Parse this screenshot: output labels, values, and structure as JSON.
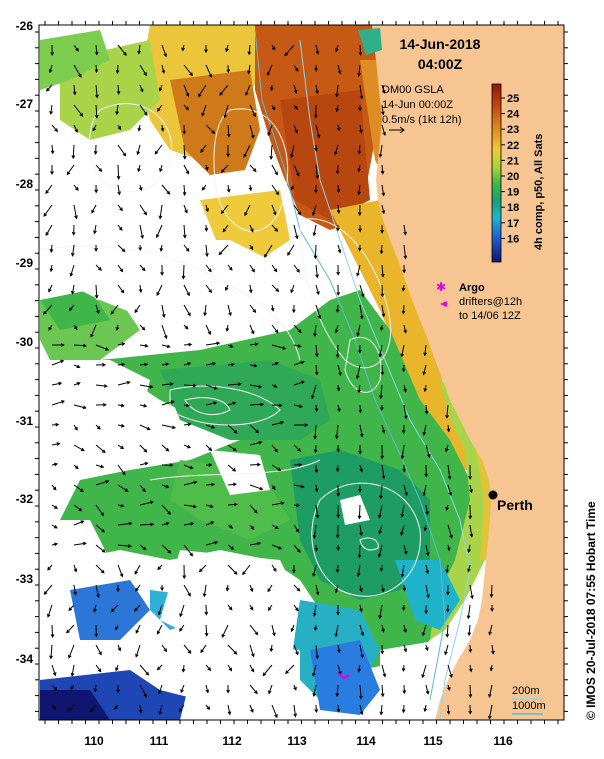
{
  "title": {
    "date": "14-Jun-2018",
    "time": "04:00Z"
  },
  "gsla": {
    "line1": "DM00 GSLA",
    "line2": "14-Jun 00:00Z",
    "scale": "0.5m/s (1kt 12h)"
  },
  "colorbar": {
    "label": "4h comp, p50, All Sats",
    "ticks": [
      "25",
      "24",
      "23",
      "22",
      "21",
      "20",
      "19",
      "18",
      "17",
      "16"
    ],
    "colors": [
      "#8a1a0a",
      "#b8420e",
      "#d77b18",
      "#e9b52a",
      "#c8d63a",
      "#3fb54a",
      "#1a9a6a",
      "#1fb3c9",
      "#1f5fd0",
      "#101a7a"
    ]
  },
  "legend": {
    "argo": "Argo",
    "drifters_line1": "drifters@12h",
    "drifters_line2": "to 14/06 12Z"
  },
  "city": "Perth",
  "depth_legend": {
    "d200": "200m",
    "d1000": "1000m"
  },
  "credit": "© IMOS 20-Jul-2018 07:55 Hobart Time",
  "axes": {
    "lon_ticks": [
      "110",
      "111",
      "112",
      "113",
      "114",
      "115",
      "116"
    ],
    "lat_ticks": [
      "-26",
      "-27",
      "-28",
      "-29",
      "-30",
      "-31",
      "-32",
      "-33",
      "-34"
    ]
  }
}
